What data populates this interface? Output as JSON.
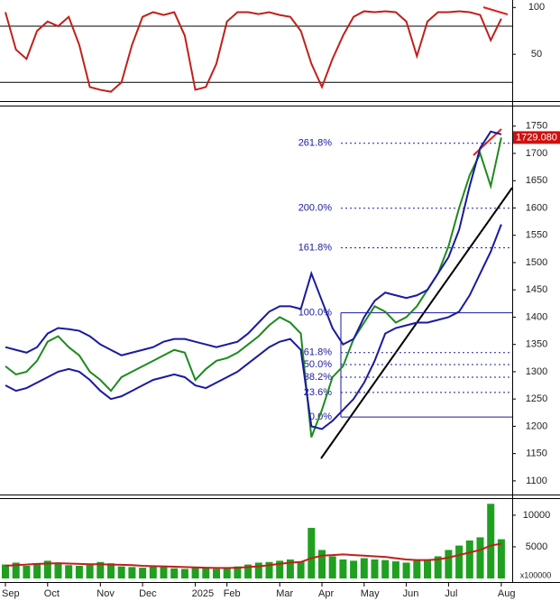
{
  "chart_data": [
    {
      "type": "line",
      "ylim": [
        0,
        108
      ],
      "yticks": [
        50,
        100
      ],
      "levels": [
        20,
        80
      ],
      "series": [
        {
          "color": "#c0201c",
          "values": [
            95,
            55,
            45,
            75,
            85,
            80,
            90,
            60,
            15,
            12,
            10,
            20,
            60,
            90,
            95,
            92,
            95,
            70,
            12,
            15,
            40,
            85,
            95,
            95,
            93,
            95,
            92,
            90,
            75,
            40,
            15,
            45,
            70,
            90,
            96,
            95,
            96,
            95,
            85,
            48,
            85,
            95,
            95,
            96,
            95,
            92,
            65,
            88
          ]
        }
      ]
    },
    {
      "type": "line",
      "ylim": [
        1075,
        1786
      ],
      "yticks": [
        1100,
        1150,
        1200,
        1250,
        1300,
        1350,
        1400,
        1450,
        1500,
        1550,
        1600,
        1650,
        1700,
        1750
      ],
      "last_price": {
        "value": 1729.08,
        "label": "1729.080"
      },
      "fib_levels": [
        {
          "value": 1718.6,
          "label": "261.8%"
        },
        {
          "value": 1599.5,
          "label": "200.0%"
        },
        {
          "value": 1527,
          "label": "161.8%"
        },
        {
          "value": 1408,
          "label": "100.0%"
        },
        {
          "value": 1335,
          "label": "61.8%"
        },
        {
          "value": 1313,
          "label": "50.0%"
        },
        {
          "value": 1290,
          "label": "38.2%"
        },
        {
          "value": 1262,
          "label": "23.6%"
        },
        {
          "value": 1217,
          "label": "0.0%"
        }
      ],
      "series": [
        {
          "color": "#1e8a1e",
          "values": [
            1310,
            1295,
            1300,
            1320,
            1355,
            1365,
            1345,
            1330,
            1300,
            1285,
            1265,
            1290,
            1300,
            1310,
            1320,
            1330,
            1340,
            1335,
            1285,
            1305,
            1320,
            1325,
            1335,
            1350,
            1365,
            1385,
            1400,
            1390,
            1370,
            1180,
            1230,
            1290,
            1310,
            1360,
            1390,
            1420,
            1410,
            1390,
            1400,
            1420,
            1450,
            1480,
            1530,
            1600,
            1660,
            1700,
            1640,
            1729.08
          ]
        },
        {
          "color": "#1a1aa0",
          "values": [
            1345,
            1340,
            1335,
            1345,
            1370,
            1380,
            1378,
            1375,
            1365,
            1350,
            1340,
            1330,
            1335,
            1340,
            1345,
            1355,
            1360,
            1360,
            1355,
            1350,
            1345,
            1350,
            1355,
            1370,
            1390,
            1410,
            1420,
            1420,
            1415,
            1480,
            1430,
            1380,
            1350,
            1360,
            1400,
            1430,
            1445,
            1440,
            1435,
            1440,
            1450,
            1480,
            1510,
            1560,
            1640,
            1710,
            1740,
            1735
          ]
        },
        {
          "color": "#1a1aa0",
          "values": [
            1275,
            1265,
            1270,
            1280,
            1290,
            1300,
            1305,
            1300,
            1285,
            1265,
            1250,
            1255,
            1265,
            1275,
            1285,
            1290,
            1295,
            1290,
            1275,
            1270,
            1280,
            1290,
            1300,
            1315,
            1330,
            1345,
            1355,
            1360,
            1340,
            1200,
            1195,
            1210,
            1230,
            1250,
            1280,
            1320,
            1370,
            1380,
            1385,
            1390,
            1390,
            1395,
            1400,
            1410,
            1440,
            1480,
            1520,
            1570
          ]
        }
      ]
    },
    {
      "type": "bar",
      "ylim": [
        0,
        12700
      ],
      "yticks": [
        5000,
        10000
      ],
      "y_unit": "x100000",
      "categories": [
        "Sep",
        null,
        null,
        null,
        "Oct",
        null,
        null,
        null,
        null,
        "Nov",
        null,
        null,
        null,
        "Dec",
        null,
        null,
        null,
        null,
        "2025",
        null,
        null,
        "Feb",
        null,
        null,
        null,
        null,
        "Mar",
        null,
        null,
        null,
        "Apr",
        null,
        null,
        null,
        "May",
        null,
        null,
        null,
        "Jun",
        null,
        null,
        null,
        "Jul",
        null,
        null,
        null,
        null,
        "Aug"
      ],
      "series": [
        {
          "color": "#1fa01f",
          "values": [
            2200,
            2500,
            2000,
            2400,
            2800,
            2300,
            2100,
            2000,
            2300,
            2600,
            2400,
            1900,
            1800,
            1700,
            1900,
            1800,
            1600,
            1500,
            1700,
            1600,
            1500,
            1700,
            1900,
            2200,
            2500,
            2600,
            2800,
            3000,
            2700,
            8000,
            4500,
            3500,
            3000,
            2800,
            3200,
            3000,
            2900,
            2700,
            2500,
            2800,
            3000,
            3500,
            4500,
            5200,
            6000,
            6500,
            11800,
            6200
          ]
        },
        {
          "color": "#c0201c",
          "values": [
            2000,
            2100,
            2200,
            2300,
            2350,
            2400,
            2350,
            2300,
            2250,
            2250,
            2200,
            2150,
            2100,
            2000,
            1950,
            1900,
            1850,
            1800,
            1750,
            1700,
            1650,
            1650,
            1700,
            1800,
            1900,
            2100,
            2300,
            2500,
            2600,
            3200,
            3600,
            3700,
            3800,
            3700,
            3600,
            3500,
            3400,
            3200,
            3000,
            2900,
            2900,
            3000,
            3300,
            3700,
            4100,
            4500,
            5200,
            5500
          ]
        }
      ]
    }
  ]
}
